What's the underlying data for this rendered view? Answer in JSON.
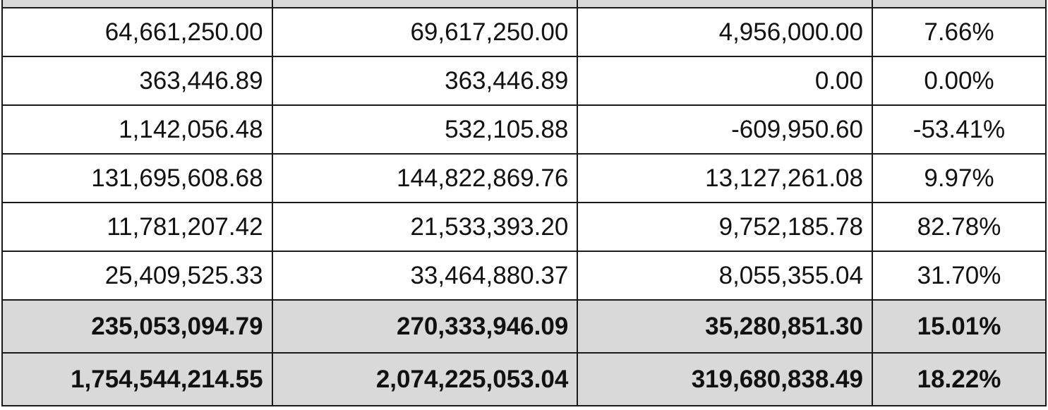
{
  "rows": [
    {
      "col1": "64,661,250.00",
      "col2": "69,617,250.00",
      "col3": "4,956,000.00",
      "col4": "7.66%"
    },
    {
      "col1": "363,446.89",
      "col2": "363,446.89",
      "col3": "0.00",
      "col4": "0.00%"
    },
    {
      "col1": "1,142,056.48",
      "col2": "532,105.88",
      "col3": "-609,950.60",
      "col4": "-53.41%"
    },
    {
      "col1": "131,695,608.68",
      "col2": "144,822,869.76",
      "col3": "13,127,261.08",
      "col4": "9.97%"
    },
    {
      "col1": "11,781,207.42",
      "col2": "21,533,393.20",
      "col3": "9,752,185.78",
      "col4": "82.78%"
    },
    {
      "col1": "25,409,525.33",
      "col2": "33,464,880.37",
      "col3": "8,055,355.04",
      "col4": "31.70%"
    }
  ],
  "subtotal": {
    "col1": "235,053,094.79",
    "col2": "270,333,946.09",
    "col3": "35,280,851.30",
    "col4": "15.01%"
  },
  "grand_total": {
    "col1": "1,754,544,214.55",
    "col2": "2,074,225,053.04",
    "col3": "319,680,838.49",
    "col4": "18.22%"
  },
  "colors": {
    "grid": "#1a1a1a",
    "total_fill": "#d9d9d9",
    "text": "#111111"
  }
}
